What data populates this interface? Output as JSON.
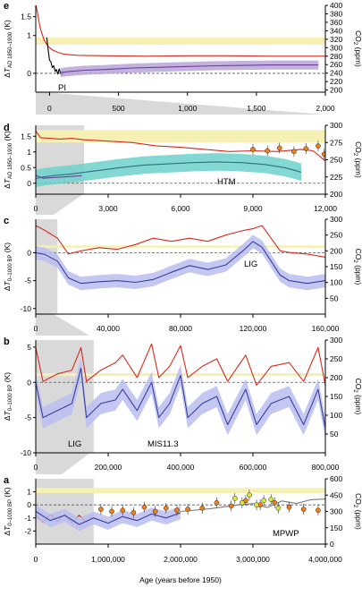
{
  "chart_data": [
    {
      "panel": "e",
      "type": "line",
      "xlim": [
        -100,
        2000
      ],
      "x_ticks": [
        "0",
        "500",
        "1,000",
        "1,500",
        "2,000"
      ],
      "ylim": [
        -0.5,
        1.8
      ],
      "y_ticks": [
        "0",
        "1",
        "1.5"
      ],
      "ylabel": "ΔT AD 1850–1900 (K)",
      "y2lim": [
        195,
        400
      ],
      "y2_ticks": [
        "200",
        "220",
        "240",
        "260",
        "280",
        "300",
        "320",
        "340",
        "360",
        "380",
        "400"
      ],
      "y2label": "CO2 (ppm)",
      "band": {
        "axis": "right",
        "from": 307,
        "to": 324,
        "color": "#f7f0b4"
      },
      "annotations": [
        "PI"
      ],
      "series": [
        {
          "axis": "right",
          "color": "#d62a1e",
          "x": [
            -100,
            -70,
            -40,
            -10,
            20,
            60,
            100,
            200,
            400,
            700,
            1000,
            1300,
            1600,
            1900,
            2000
          ],
          "y": [
            405,
            350,
            318,
            303,
            295,
            289,
            285,
            282,
            281,
            280,
            281,
            281,
            280,
            280,
            280
          ]
        },
        {
          "axis": "left",
          "color": "#000000",
          "x": [
            -20,
            -10,
            0,
            10,
            20,
            30,
            40,
            50,
            60,
            70,
            80,
            90,
            100
          ],
          "y": [
            0.95,
            0.62,
            0.35,
            0.3,
            0.15,
            0.2,
            0.05,
            0.1,
            -0.02,
            0.12,
            0.0,
            -0.05,
            0.05
          ]
        },
        {
          "axis": "left",
          "color": "#6a3f9a",
          "band": "#b9a4d8",
          "band_width": 0.12,
          "x": [
            80,
            150,
            250,
            400,
            600,
            800,
            1000,
            1200,
            1400,
            1600,
            1800,
            1950
          ],
          "y": [
            0.02,
            0.05,
            0.08,
            0.1,
            0.14,
            0.16,
            0.18,
            0.2,
            0.21,
            0.22,
            0.22,
            0.22
          ]
        }
      ]
    },
    {
      "panel": "d",
      "type": "line",
      "xlim": [
        0,
        12000
      ],
      "x_ticks": [
        "0",
        "3,000",
        "6,000",
        "9,000",
        "12,000"
      ],
      "ylim": [
        -0.35,
        1.85
      ],
      "y_ticks": [
        "0",
        "0.5",
        "1",
        "1.5"
      ],
      "ylabel": "ΔT AD 1850–1900 (K)",
      "y2lim": [
        200,
        300
      ],
      "y2_ticks": [
        "200",
        "225",
        "250",
        "275",
        "300"
      ],
      "y2label": "CO2 (ppm)",
      "band": {
        "axis": "left",
        "from": 1.3,
        "to": 1.7,
        "color": "#f7f0b4"
      },
      "annotations": [
        "HTM"
      ],
      "series": [
        {
          "axis": "right",
          "color": "#d62a1e",
          "x": [
            0,
            200,
            600,
            1000,
            1500,
            2000,
            3000,
            4000,
            5000,
            6000,
            7000,
            8000,
            9000,
            10000,
            11000,
            11500,
            12000
          ],
          "y": [
            292,
            282,
            281,
            280,
            281,
            279,
            277,
            275,
            270,
            268,
            265,
            262,
            263,
            262,
            265,
            263,
            248
          ]
        },
        {
          "axis": "left",
          "color": "#2f6f7a",
          "band": "#6fd1cc",
          "band_width": 0.28,
          "x": [
            0,
            300,
            800,
            1500,
            2500,
            3500,
            4500,
            5500,
            6500,
            7500,
            8500,
            9500,
            10300,
            10800,
            11000
          ],
          "y": [
            0.15,
            0.2,
            0.25,
            0.3,
            0.4,
            0.5,
            0.58,
            0.62,
            0.66,
            0.68,
            0.66,
            0.6,
            0.5,
            0.4,
            0.35
          ]
        },
        {
          "axis": "left",
          "color": "#6a3f9a",
          "x": [
            0,
            300,
            700,
            1100,
            1500,
            1900
          ],
          "y": [
            0.25,
            0.16,
            0.18,
            0.2,
            0.22,
            0.24
          ]
        }
      ],
      "points": [
        {
          "axis": "right",
          "color": "#f07f1a",
          "x": [
            9000,
            9600,
            10100,
            10700,
            11200,
            11700,
            11950
          ],
          "y": [
            265,
            263,
            267,
            262,
            266,
            270,
            258
          ]
        }
      ]
    },
    {
      "panel": "c",
      "type": "line",
      "xlim": [
        0,
        160000
      ],
      "x_ticks": [
        "0",
        "40,000",
        "80,000",
        "120,000",
        "160,000"
      ],
      "ylim": [
        -11,
        6
      ],
      "y_ticks": [
        "-10",
        "-5",
        "0"
      ],
      "ylabel": "ΔT 0–1000 BP (K)",
      "y2lim": [
        0,
        300
      ],
      "y2_ticks": [
        "50",
        "100",
        "150",
        "200",
        "250",
        "300"
      ],
      "y2label": "CO2 (ppm)",
      "band": {
        "axis": "left",
        "from": 0.9,
        "to": 1.3,
        "color": "#f7f0b4"
      },
      "annotations": [
        "LIG"
      ],
      "series": [
        {
          "axis": "right",
          "color": "#d62a1e",
          "x": [
            0,
            5000,
            12000,
            18000,
            25000,
            35000,
            45000,
            55000,
            65000,
            75000,
            85000,
            95000,
            105000,
            115000,
            120000,
            125000,
            130000,
            135000,
            140000,
            150000,
            160000
          ],
          "y": [
            280,
            265,
            240,
            190,
            200,
            210,
            205,
            220,
            240,
            230,
            240,
            230,
            250,
            265,
            270,
            280,
            240,
            200,
            195,
            190,
            180
          ]
        },
        {
          "axis": "left",
          "color": "#3a3f9a",
          "band": "#b9bdf0",
          "band_width": 1.2,
          "x": [
            0,
            5000,
            12000,
            18000,
            25000,
            35000,
            45000,
            55000,
            65000,
            75000,
            85000,
            95000,
            105000,
            115000,
            120000,
            125000,
            130000,
            135000,
            140000,
            150000,
            160000
          ],
          "y": [
            0,
            -0.3,
            -1.5,
            -4.5,
            -5.5,
            -5.2,
            -5.0,
            -5.3,
            -4.8,
            -3.5,
            -2.3,
            -3.0,
            -2.2,
            0.5,
            2.0,
            1.0,
            -1.5,
            -4.0,
            -5.0,
            -5.5,
            -5.0
          ]
        }
      ]
    },
    {
      "panel": "b",
      "type": "line",
      "xlim": [
        0,
        800000
      ],
      "x_ticks": [
        "0",
        "200,000",
        "400,000",
        "600,000",
        "800,000"
      ],
      "ylim": [
        -10,
        6
      ],
      "y_ticks": [
        "-10",
        "-5",
        "0",
        "5"
      ],
      "ylabel": "ΔT 0–1000 BP (K)",
      "y2lim": [
        0,
        300
      ],
      "y2_ticks": [
        "50",
        "100",
        "150",
        "200",
        "250",
        "300"
      ],
      "y2label": "CO2 (ppm)",
      "band": {
        "axis": "left",
        "from": 0.9,
        "to": 1.3,
        "color": "#f7f0b4"
      },
      "annotations": [
        "LIG",
        "MIS11.3"
      ],
      "series": [
        {
          "axis": "right",
          "color": "#d62a1e",
          "x": [
            0,
            20000,
            60000,
            100000,
            125000,
            140000,
            180000,
            220000,
            240000,
            280000,
            320000,
            340000,
            370000,
            400000,
            420000,
            460000,
            500000,
            530000,
            580000,
            610000,
            650000,
            700000,
            740000,
            780000,
            800000
          ],
          "y": [
            280,
            190,
            210,
            220,
            280,
            190,
            220,
            240,
            260,
            200,
            290,
            200,
            230,
            285,
            200,
            230,
            250,
            190,
            260,
            180,
            230,
            240,
            190,
            280,
            180
          ]
        },
        {
          "axis": "left",
          "color": "#3a3f9a",
          "band": "#b9bdf0",
          "band_width": 1.5,
          "x": [
            0,
            20000,
            60000,
            100000,
            125000,
            140000,
            180000,
            220000,
            240000,
            280000,
            320000,
            340000,
            370000,
            400000,
            420000,
            460000,
            500000,
            530000,
            580000,
            610000,
            650000,
            700000,
            740000,
            780000,
            800000
          ],
          "y": [
            0,
            -5,
            -4,
            -3,
            2,
            -5,
            -3,
            -2.5,
            -1,
            -4,
            0,
            -5,
            -3,
            1,
            -5,
            -3,
            -2,
            -6,
            -1,
            -6,
            -3,
            -2,
            -6,
            -1,
            -6.5
          ]
        }
      ]
    },
    {
      "panel": "a",
      "type": "line",
      "xlim": [
        0,
        4000000
      ],
      "x_ticks": [
        "0",
        "1,000,000",
        "2,000,000",
        "3,000,000",
        "4,000,000"
      ],
      "xlabel": "Age (years before 1950)",
      "ylim": [
        -3,
        2
      ],
      "y_ticks": [
        "-2",
        "-1",
        "0",
        "1"
      ],
      "ylabel": "ΔT 0–1000 BP (K)",
      "y2lim": [
        0,
        600
      ],
      "y2_ticks": [
        "0",
        "150",
        "300",
        "450",
        "600"
      ],
      "y2label": "CO2 (ppm)",
      "band": {
        "axis": "left",
        "from": 0.9,
        "to": 1.3,
        "color": "#f7f0b4"
      },
      "annotations": [
        "MPWP"
      ],
      "series": [
        {
          "axis": "right",
          "color": "#d62a1e",
          "x": [
            0,
            100000,
            200000,
            300000,
            400000,
            500000,
            600000,
            700000,
            800000
          ],
          "y": [
            260,
            200,
            270,
            210,
            275,
            195,
            265,
            200,
            270
          ]
        },
        {
          "axis": "left",
          "color": "#3a3f9a",
          "band": "#b9bdf0",
          "band_width": 0.5,
          "x": [
            0,
            200000,
            400000,
            600000,
            800000,
            1000000,
            1200000,
            1400000,
            1600000,
            1800000,
            2000000
          ],
          "y": [
            -0.5,
            -1.2,
            -0.8,
            -1.5,
            -1.0,
            -1.4,
            -0.9,
            -1.2,
            -0.7,
            -1.0,
            -0.6
          ]
        },
        {
          "axis": "left",
          "color": "#7a7a7a",
          "x": [
            2000000,
            2400000,
            2800000,
            3000000,
            3200000,
            3400000,
            3600000,
            3800000,
            4000000
          ],
          "y": [
            -0.5,
            -0.3,
            0.0,
            0.1,
            -0.2,
            0.3,
            0.1,
            0.4,
            0.45
          ]
        }
      ],
      "points": [
        {
          "axis": "right",
          "color": "#f07f1a",
          "x": [
            900000,
            1050000,
            1200000,
            1350000,
            1500000,
            1650000,
            1800000,
            1950000,
            2100000,
            2300000,
            2500000,
            2700000,
            2900000,
            3100000,
            3300000,
            3500000,
            3700000,
            3900000
          ],
          "y": [
            320,
            300,
            310,
            290,
            340,
            300,
            330,
            310,
            320,
            330,
            380,
            350,
            400,
            360,
            380,
            340,
            320,
            310
          ]
        },
        {
          "axis": "right",
          "color": "#d8e63a",
          "x": [
            2750000,
            2850000,
            2950000,
            3050000,
            3150000,
            3250000,
            3350000
          ],
          "y": [
            420,
            380,
            450,
            360,
            400,
            410,
            330
          ]
        }
      ]
    }
  ]
}
